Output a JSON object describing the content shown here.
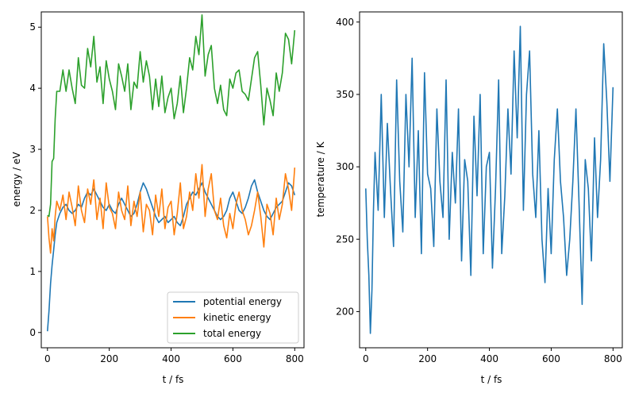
{
  "chart_data": [
    {
      "type": "line",
      "xlabel": "t / fs",
      "ylabel": "energy / eV",
      "xlim": [
        -20,
        830
      ],
      "ylim": [
        -0.25,
        5.25
      ],
      "xticks": [
        0,
        200,
        400,
        600,
        800
      ],
      "yticks": [
        0,
        1,
        2,
        3,
        4,
        5
      ],
      "legend_position": "lower-right",
      "x": [
        0,
        5,
        10,
        15,
        20,
        25,
        30,
        40,
        50,
        60,
        70,
        80,
        90,
        100,
        110,
        120,
        130,
        140,
        150,
        160,
        170,
        180,
        190,
        200,
        210,
        220,
        230,
        240,
        250,
        260,
        270,
        280,
        290,
        300,
        310,
        320,
        330,
        340,
        350,
        360,
        370,
        380,
        390,
        400,
        410,
        420,
        430,
        440,
        450,
        460,
        470,
        480,
        490,
        500,
        510,
        520,
        530,
        540,
        550,
        560,
        570,
        580,
        590,
        600,
        610,
        620,
        630,
        640,
        650,
        660,
        670,
        680,
        690,
        700,
        710,
        720,
        730,
        740,
        750,
        760,
        770,
        780,
        790,
        800
      ],
      "series": [
        {
          "name": "potential energy",
          "color": "#1f77b4",
          "values": [
            0.02,
            0.35,
            0.8,
            1.1,
            1.35,
            1.6,
            1.8,
            1.95,
            2.05,
            2.1,
            2.0,
            1.95,
            2.0,
            2.1,
            2.05,
            2.2,
            2.3,
            2.25,
            2.35,
            2.25,
            2.15,
            2.05,
            2.0,
            2.1,
            2.0,
            1.95,
            2.1,
            2.2,
            2.1,
            2.0,
            1.9,
            1.95,
            2.1,
            2.3,
            2.45,
            2.35,
            2.2,
            2.05,
            1.9,
            1.8,
            1.85,
            1.9,
            1.8,
            1.85,
            1.9,
            1.8,
            1.75,
            1.9,
            2.1,
            2.2,
            2.3,
            2.25,
            2.35,
            2.45,
            2.3,
            2.2,
            2.1,
            2.0,
            1.9,
            1.85,
            1.9,
            2.0,
            2.2,
            2.3,
            2.15,
            2.0,
            1.95,
            2.05,
            2.2,
            2.4,
            2.5,
            2.3,
            2.15,
            2.0,
            1.9,
            1.85,
            1.95,
            2.05,
            2.1,
            2.15,
            2.3,
            2.45,
            2.4,
            2.25
          ]
        },
        {
          "name": "kinetic energy",
          "color": "#ff7f0e",
          "values": [
            1.9,
            1.55,
            1.3,
            1.7,
            1.5,
            1.9,
            2.15,
            2.0,
            2.25,
            1.85,
            2.3,
            2.05,
            1.75,
            2.4,
            2.0,
            1.8,
            2.35,
            2.1,
            2.5,
            1.85,
            2.2,
            1.7,
            2.45,
            2.05,
            1.95,
            1.7,
            2.3,
            2.0,
            1.85,
            2.4,
            1.75,
            2.15,
            1.9,
            2.3,
            1.65,
            2.1,
            2.0,
            1.6,
            2.25,
            1.9,
            2.35,
            1.7,
            2.05,
            2.15,
            1.6,
            1.95,
            2.45,
            1.7,
            1.9,
            2.3,
            2.0,
            2.6,
            2.2,
            2.75,
            1.9,
            2.35,
            2.6,
            2.0,
            1.85,
            2.2,
            1.75,
            1.55,
            1.95,
            1.7,
            2.1,
            2.3,
            2.0,
            1.85,
            1.6,
            1.75,
            2.0,
            2.3,
            1.9,
            1.4,
            2.1,
            1.95,
            1.6,
            2.2,
            1.85,
            2.1,
            2.6,
            2.35,
            2.0,
            2.7
          ]
        },
        {
          "name": "total energy",
          "color": "#2ca02c",
          "values": [
            1.92,
            1.9,
            2.1,
            2.8,
            2.85,
            3.5,
            3.95,
            3.95,
            4.3,
            3.95,
            4.3,
            4.0,
            3.75,
            4.5,
            4.05,
            4.0,
            4.65,
            4.35,
            4.85,
            4.1,
            4.35,
            3.75,
            4.45,
            4.15,
            3.95,
            3.65,
            4.4,
            4.2,
            3.95,
            4.4,
            3.65,
            4.1,
            4.0,
            4.6,
            4.1,
            4.45,
            4.2,
            3.65,
            4.15,
            3.7,
            4.2,
            3.6,
            3.85,
            4.0,
            3.5,
            3.75,
            4.2,
            3.6,
            4.0,
            4.5,
            4.3,
            4.85,
            4.55,
            5.2,
            4.2,
            4.55,
            4.7,
            4.0,
            3.75,
            4.05,
            3.65,
            3.55,
            4.15,
            4.0,
            4.25,
            4.3,
            3.95,
            3.9,
            3.8,
            4.15,
            4.5,
            4.6,
            4.05,
            3.4,
            4.0,
            3.8,
            3.55,
            4.25,
            3.95,
            4.25,
            4.9,
            4.8,
            4.4,
            4.95
          ]
        }
      ]
    },
    {
      "type": "line",
      "xlabel": "t / fs",
      "ylabel": "temperature / K",
      "xlim": [
        -20,
        830
      ],
      "ylim": [
        175,
        407
      ],
      "xticks": [
        0,
        200,
        400,
        600,
        800
      ],
      "yticks": [
        200,
        250,
        300,
        350,
        400
      ],
      "x": [
        0,
        5,
        10,
        15,
        20,
        25,
        30,
        40,
        50,
        60,
        70,
        80,
        90,
        100,
        110,
        120,
        130,
        140,
        150,
        160,
        170,
        180,
        190,
        200,
        210,
        220,
        230,
        240,
        250,
        260,
        270,
        280,
        290,
        300,
        310,
        320,
        330,
        340,
        350,
        360,
        370,
        380,
        390,
        400,
        410,
        420,
        430,
        440,
        450,
        460,
        470,
        480,
        490,
        500,
        510,
        520,
        530,
        540,
        550,
        560,
        570,
        580,
        590,
        600,
        610,
        620,
        630,
        640,
        650,
        660,
        670,
        680,
        690,
        700,
        710,
        720,
        730,
        740,
        750,
        760,
        770,
        780,
        790,
        800
      ],
      "series": [
        {
          "color": "#1f77b4",
          "values": [
            285,
            250,
            225,
            185,
            215,
            270,
            310,
            270,
            350,
            265,
            330,
            285,
            245,
            360,
            290,
            255,
            350,
            300,
            375,
            265,
            325,
            240,
            365,
            295,
            285,
            245,
            340,
            290,
            265,
            360,
            250,
            310,
            275,
            340,
            235,
            305,
            290,
            225,
            335,
            280,
            350,
            240,
            300,
            310,
            230,
            285,
            360,
            240,
            280,
            340,
            295,
            380,
            320,
            397,
            270,
            350,
            380,
            295,
            265,
            325,
            250,
            220,
            285,
            240,
            305,
            340,
            290,
            265,
            225,
            250,
            290,
            340,
            275,
            205,
            305,
            285,
            235,
            320,
            265,
            305,
            385,
            345,
            290,
            355
          ]
        }
      ]
    }
  ]
}
